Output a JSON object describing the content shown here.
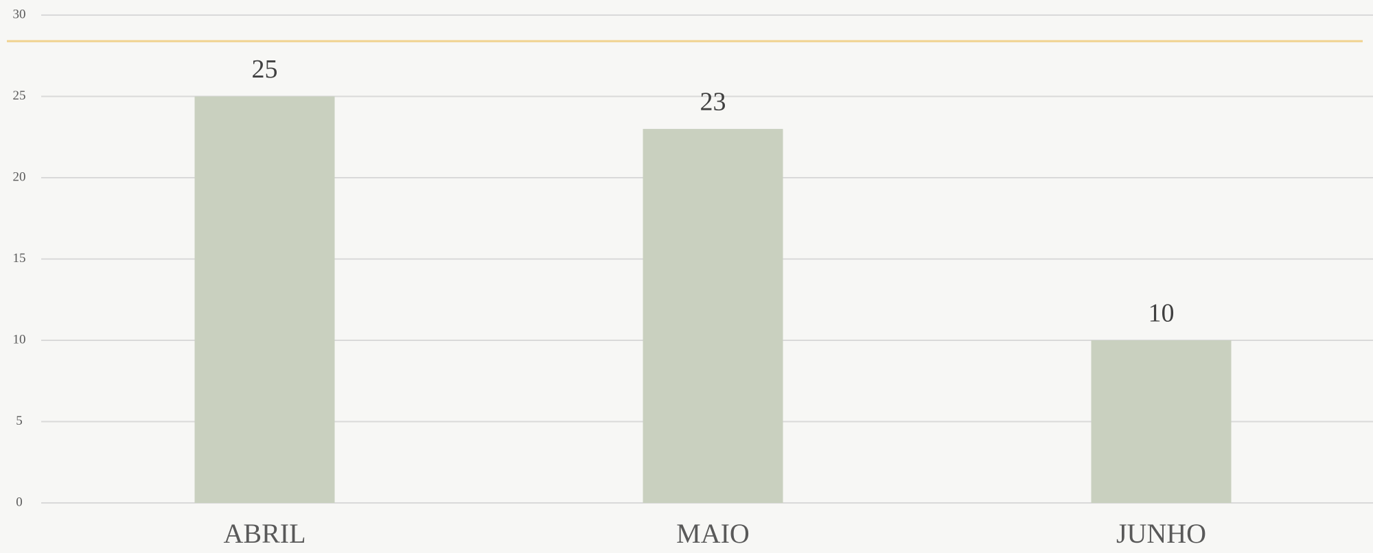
{
  "chart_data": {
    "type": "bar",
    "categories": [
      "ABRIL",
      "MAIO",
      "JUNHO"
    ],
    "values": [
      25,
      23,
      10
    ],
    "color": "#c9d0bf",
    "ylim": [
      0,
      30
    ],
    "yticks": [
      0,
      5,
      10,
      15,
      20,
      25,
      30
    ],
    "grid": true
  }
}
